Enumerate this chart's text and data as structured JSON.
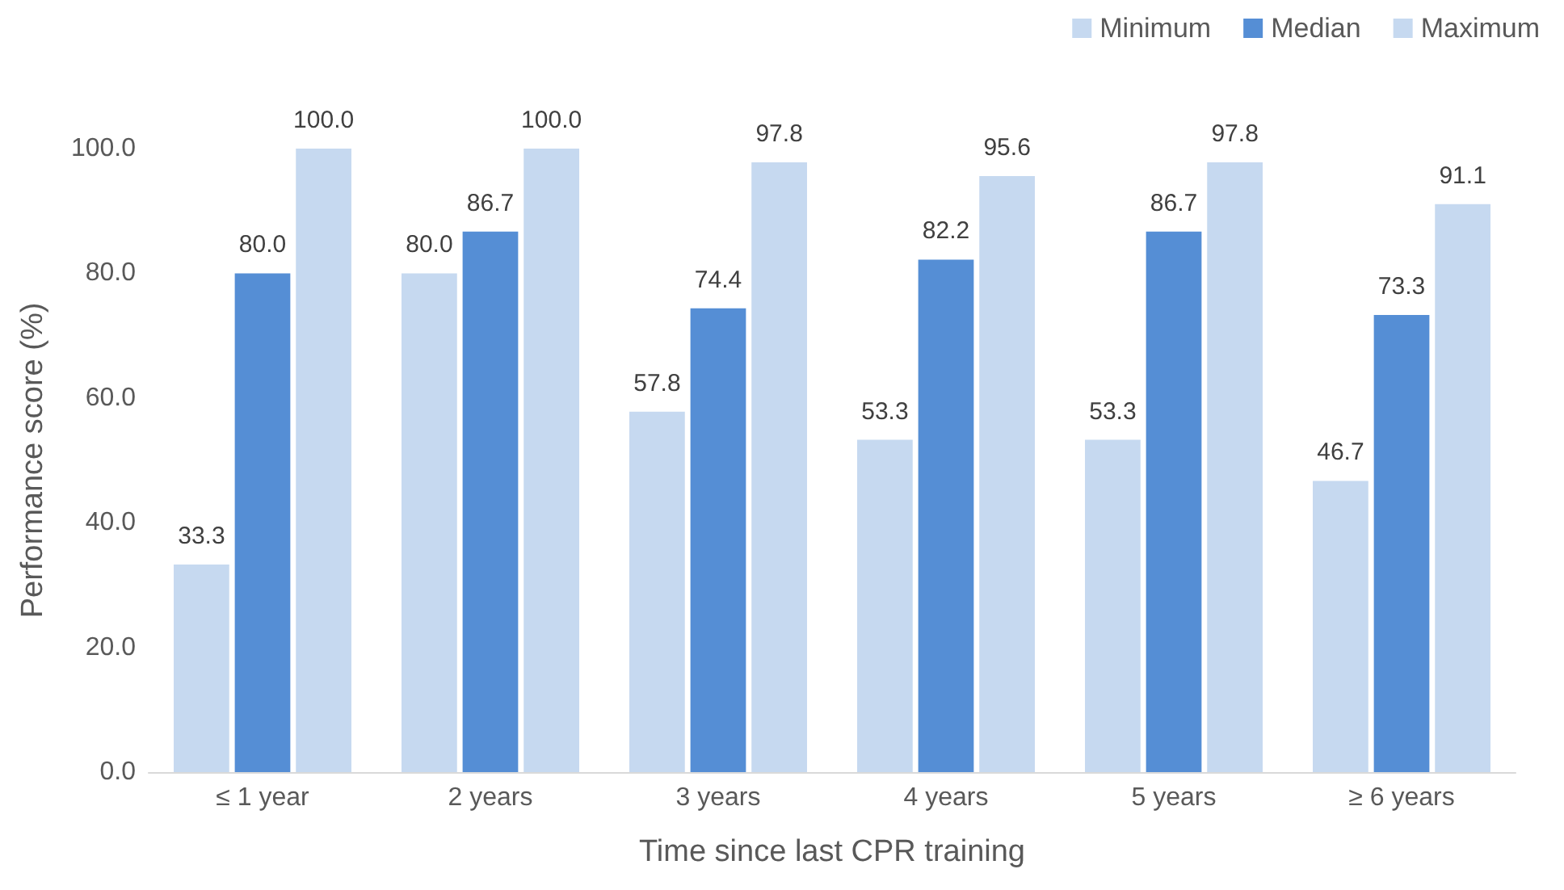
{
  "chart_data": {
    "type": "bar",
    "xlabel": "Time since last CPR training",
    "ylabel": "Performance score (%)",
    "categories": [
      "≤ 1 year",
      "2 years",
      "3 years",
      "4 years",
      "5 years",
      "≥ 6 years"
    ],
    "series": [
      {
        "name": "Minimum",
        "color": "#c6d9f0",
        "values": [
          33.3,
          80.0,
          57.8,
          53.3,
          53.3,
          46.7
        ],
        "value_labels": [
          "33.3",
          "80.0",
          "57.8",
          "53.3",
          "53.3",
          "46.7"
        ]
      },
      {
        "name": "Median",
        "color": "#558ed5",
        "values": [
          80.0,
          86.7,
          74.4,
          82.2,
          86.7,
          73.3
        ],
        "value_labels": [
          "80.0",
          "86.7",
          "74.4",
          "82.2",
          "86.7",
          "73.3"
        ]
      },
      {
        "name": "Maximum",
        "color": "#c6d9f0",
        "values": [
          100.0,
          100.0,
          97.8,
          95.6,
          97.8,
          91.1
        ],
        "value_labels": [
          "100.0",
          "100.0",
          "97.8",
          "95.6",
          "97.8",
          "91.1"
        ]
      }
    ],
    "ylim": [
      0,
      100
    ],
    "yticks": [
      {
        "value": 0,
        "label": "0.0"
      },
      {
        "value": 20,
        "label": "20.0"
      },
      {
        "value": 40,
        "label": "40.0"
      },
      {
        "value": 60,
        "label": "60.0"
      },
      {
        "value": 80,
        "label": "80.0"
      },
      {
        "value": 100,
        "label": "100.0"
      }
    ],
    "grid": false,
    "legend": "top right"
  }
}
